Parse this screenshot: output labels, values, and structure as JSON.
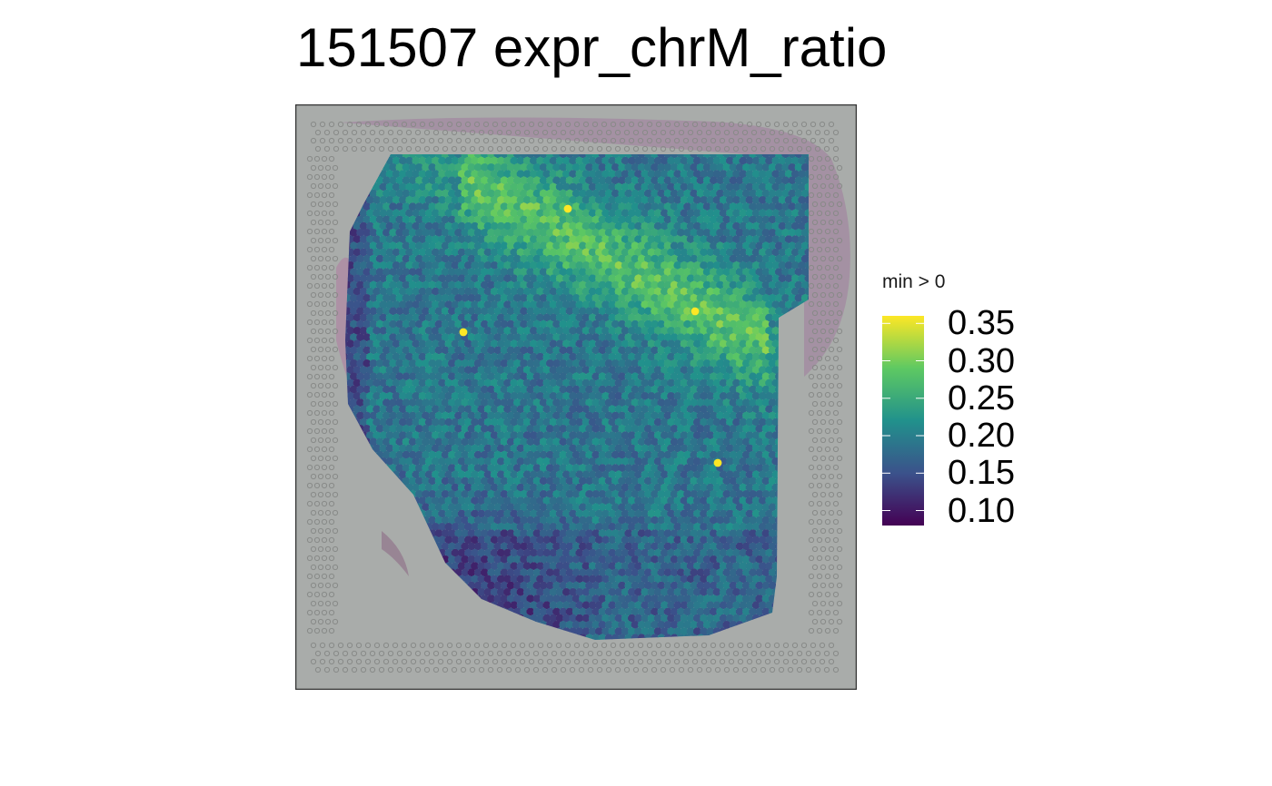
{
  "chart_data": {
    "type": "scatter",
    "title": "151507 expr_chrM_ratio",
    "subtitle": "",
    "xlabel": "",
    "ylabel": "",
    "background": "H&E tissue image (spatial Visium slide) with fiducial spot grid",
    "color_scale": {
      "name": "viridis",
      "legend_title": "min > 0",
      "range": [
        0.08,
        0.36
      ],
      "ticks": [
        0.35,
        0.3,
        0.25,
        0.2,
        0.15,
        0.1
      ],
      "tick_labels": [
        "0.35",
        "0.30",
        "0.25",
        "0.20",
        "0.15",
        "0.10"
      ],
      "stops": [
        "#440154",
        "#3b528b",
        "#21918c",
        "#5ec962",
        "#fde725"
      ]
    },
    "summary": {
      "spots_colored_by": "expr_chrM_ratio",
      "typical_value": 0.2,
      "high_region": "upper band (~0.28-0.33)",
      "low_region": "lower-left edge (~0.08-0.12)",
      "outliers_max": 0.36
    },
    "grid": false,
    "legend_position": "right"
  }
}
